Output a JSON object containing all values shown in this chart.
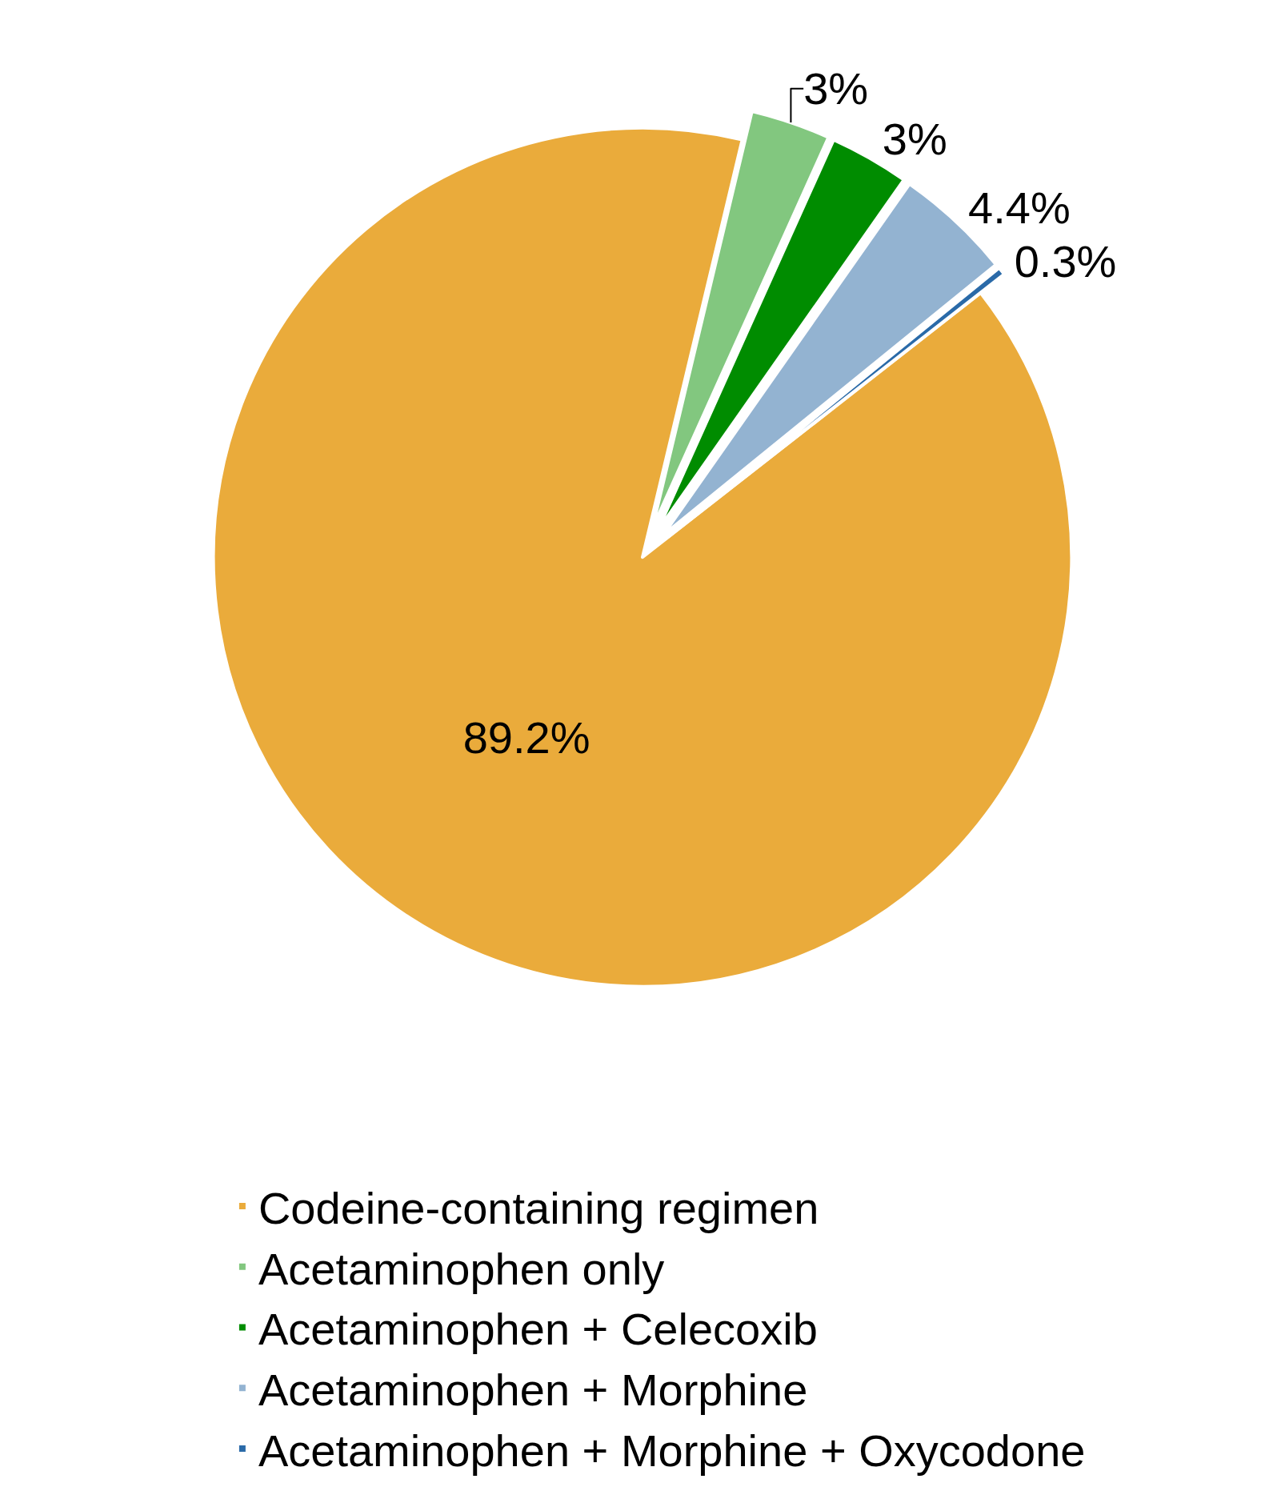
{
  "chart_data": {
    "type": "pie",
    "categories": [
      "Codeine-containing regimen",
      "Acetaminophen only",
      "Acetaminophen + Celecoxib",
      "Acetaminophen + Morphine",
      "Acetaminophen + Morphine + Oxycodone"
    ],
    "values": [
      89.2,
      3,
      3,
      4.4,
      0.3
    ],
    "value_labels": [
      "89.2%",
      "3%",
      "3%",
      "4.4%",
      "0.3%"
    ],
    "colors": [
      "#eaab3b",
      "#82c77f",
      "#008c00",
      "#93b3d1",
      "#2a6aa8"
    ],
    "legend": "bottom"
  }
}
